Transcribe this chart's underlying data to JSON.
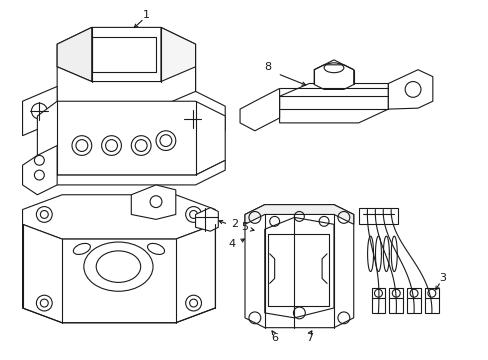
{
  "bg_color": "#ffffff",
  "line_color": "#1a1a1a",
  "line_width": 0.8,
  "fig_width": 4.89,
  "fig_height": 3.6,
  "dpi": 100
}
